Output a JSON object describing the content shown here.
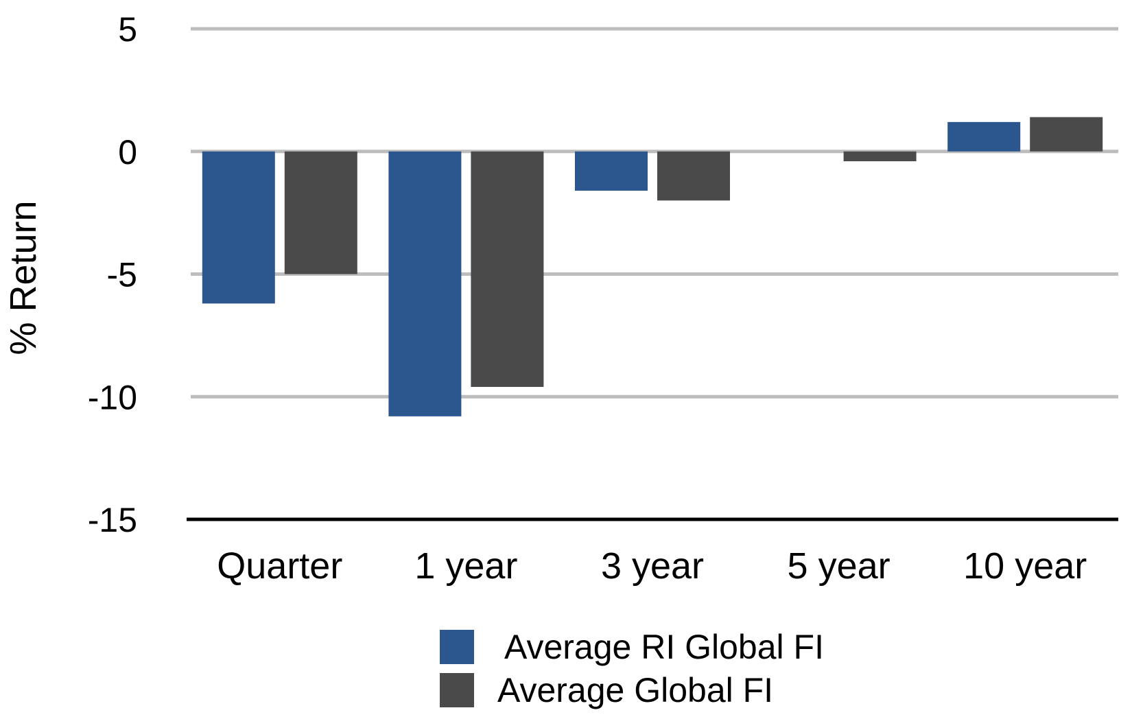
{
  "chart_data": {
    "type": "bar",
    "title": "",
    "xlabel": "",
    "ylabel": "% Return",
    "ylim": [
      -15,
      5
    ],
    "yticks": [
      5,
      0,
      -5,
      -10,
      -15
    ],
    "grid": true,
    "legend_position": "bottom-center",
    "categories": [
      "Quarter",
      "1 year",
      "3 year",
      "5 year",
      "10 year"
    ],
    "series": [
      {
        "name": "Average RI Global FI",
        "color": "#2c568e",
        "values": [
          -6.2,
          -10.8,
          -1.6,
          0,
          1.2
        ]
      },
      {
        "name": "Average Global FI",
        "color": "#4a4a4a",
        "values": [
          -5.0,
          -9.6,
          -2.0,
          -0.4,
          1.4
        ]
      }
    ]
  }
}
